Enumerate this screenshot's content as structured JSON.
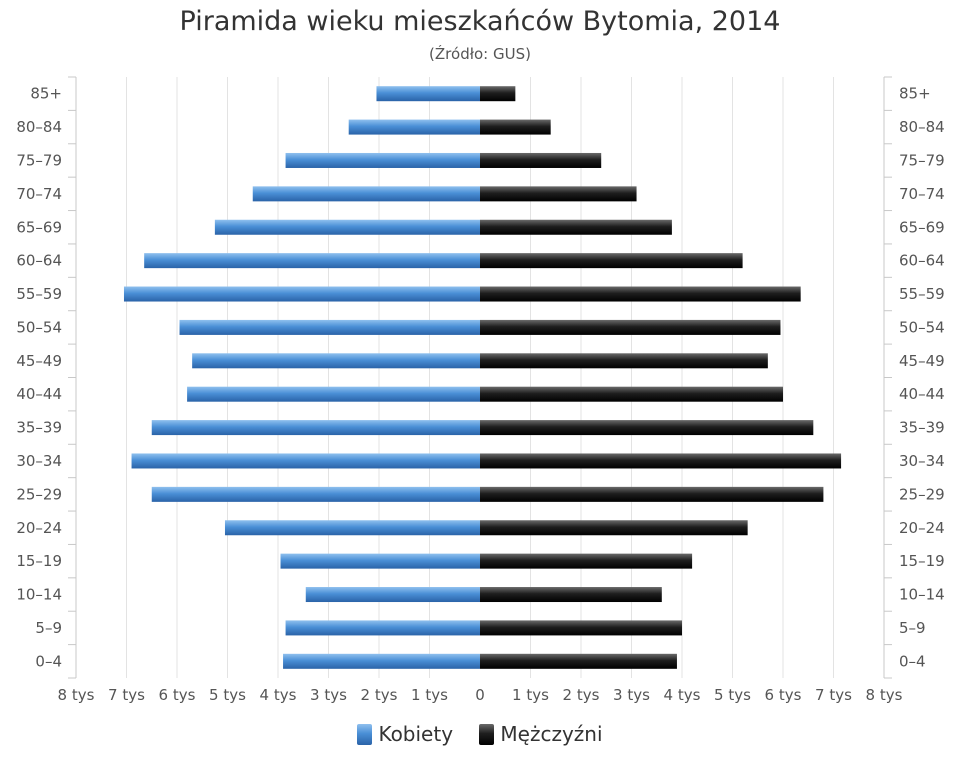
{
  "chart_data": {
    "type": "bar",
    "orientation": "horizontal",
    "title": "Piramida wieku mieszkańców Bytomia, 2014",
    "subtitle": "(Źródło: GUS)",
    "categories": [
      "85+",
      "80-84",
      "75-79",
      "70-74",
      "65-69",
      "60-64",
      "55-59",
      "50-54",
      "45-49",
      "40-44",
      "35-39",
      "30-34",
      "25-29",
      "20-24",
      "15-19",
      "10-14",
      "5-9",
      "0-4"
    ],
    "categories_display": [
      "85+",
      "80–84",
      "75–79",
      "70–74",
      "65–69",
      "60–64",
      "55–59",
      "50–54",
      "45–49",
      "40–44",
      "35–39",
      "30–34",
      "25–29",
      "20–24",
      "15–19",
      "10–14",
      "5–9",
      "0–4"
    ],
    "series": [
      {
        "name": "Kobiety",
        "color": "#4a8fd6",
        "side": "left",
        "values": [
          2050,
          2600,
          3850,
          4500,
          5250,
          6650,
          7050,
          5950,
          5700,
          5800,
          6500,
          6900,
          6500,
          5050,
          3950,
          3450,
          3850,
          3900
        ]
      },
      {
        "name": "Mężczyźni",
        "color": "#222222",
        "side": "right",
        "values": [
          700,
          1400,
          2400,
          3100,
          3800,
          5200,
          6350,
          5950,
          5700,
          6000,
          6600,
          7150,
          6800,
          5300,
          4200,
          3600,
          4000,
          3900
        ]
      }
    ],
    "xlim": [
      -8000,
      8000
    ],
    "x_ticks": [
      -8000,
      -7000,
      -6000,
      -5000,
      -4000,
      -3000,
      -2000,
      -1000,
      0,
      1000,
      2000,
      3000,
      4000,
      5000,
      6000,
      7000,
      8000
    ],
    "x_tick_labels": [
      "8 tys",
      "7 tys",
      "6 tys",
      "5 tys",
      "4 tys",
      "3 tys",
      "2 tys",
      "1 tys",
      "0",
      "1 tys",
      "2 tys",
      "3 tys",
      "4 tys",
      "5 tys",
      "6 tys",
      "7 tys",
      "8 tys"
    ],
    "grid": true,
    "legend_position": "bottom-center"
  }
}
